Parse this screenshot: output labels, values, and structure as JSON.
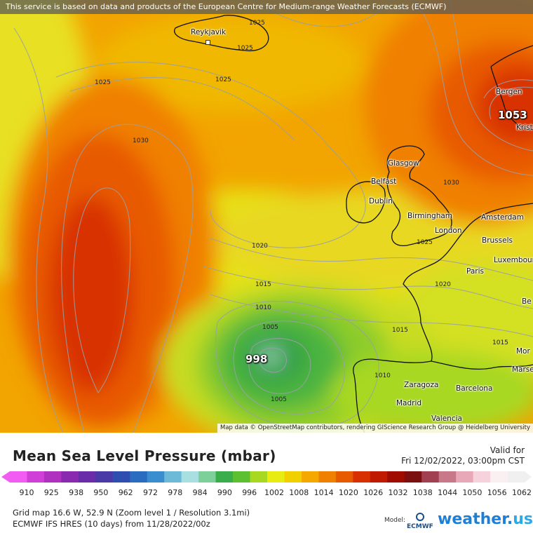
{
  "attribution_top": "This service is based on data and products of the European Centre for Medium-range Weather Forecasts (ECMWF)",
  "attribution_bottom": "Map data © OpenStreetMap contributors, rendering GIScience Research Group @ Heidelberg University",
  "cities": {
    "reykjavik": "Reykjavik",
    "bergen": "Bergen",
    "kristiansand": "Krist",
    "glasgow": "Glasgow",
    "belfast": "Belfast",
    "dublin": "Dublin",
    "birmingham": "Birmingham",
    "london": "London",
    "amsterdam": "Amsterdam",
    "brussels": "Brussels",
    "luxembourg": "Luxembour",
    "paris": "Paris",
    "zaragoza": "Zaragoza",
    "barcelona": "Barcelona",
    "madrid": "Madrid",
    "valencia": "Valencia",
    "marseille": "Marse",
    "montpellier": "Mor",
    "bern": "Be"
  },
  "isobar_labels": [
    "1025",
    "1025",
    "1025",
    "1025",
    "1030",
    "1030",
    "1025",
    "1020",
    "1015",
    "1010",
    "1005",
    "1005",
    "1015",
    "1020",
    "1015",
    "1010"
  ],
  "pressure_centers": {
    "low": "998",
    "high": "1053"
  },
  "legend": {
    "title": "Mean Sea Level Pressure (mbar)",
    "valid_label": "Valid for",
    "valid_date": "Fri 12/02/2022, 03:00pm CST",
    "ticks": [
      "910",
      "925",
      "938",
      "950",
      "962",
      "972",
      "978",
      "984",
      "990",
      "996",
      "1002",
      "1008",
      "1014",
      "1020",
      "1026",
      "1032",
      "1038",
      "1044",
      "1050",
      "1056",
      "1062"
    ],
    "colors": [
      "#f25cf2",
      "#d040d8",
      "#b030c0",
      "#8a2ab0",
      "#6a2ca8",
      "#4a3aa8",
      "#2f4fb0",
      "#2a6cc0",
      "#3a8ed0",
      "#6cbad8",
      "#a8dfe0",
      "#7ed09a",
      "#3aae4a",
      "#5cc030",
      "#a8d820",
      "#e8ec10",
      "#f2d000",
      "#f4a800",
      "#f08000",
      "#e85a00",
      "#d83000",
      "#c01a00",
      "#a00c00",
      "#7a1010",
      "#a04050",
      "#c87888",
      "#e8a8b8",
      "#f6d2dc",
      "#faf0f2",
      "#f0f0f0"
    ]
  },
  "info": {
    "grid": "Grid map 16.6 W, 52.9 N (Zoom level 1 / Resolution 3.1mi)",
    "model_run": "ECMWF IFS HRES (10 days) from 11/28/2022/00z",
    "model_label": "Model:",
    "model_name": "ECMWF",
    "brand_main": "weather.",
    "brand_suffix": "us"
  }
}
